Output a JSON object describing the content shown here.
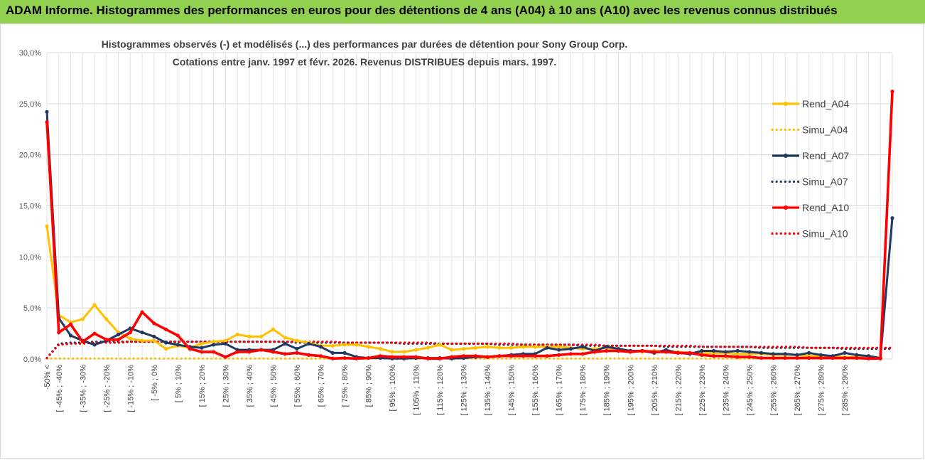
{
  "header": {
    "title": "ADAM Informe. Histogrammes des performances en euros pour des détentions de 4 ans (A04) à 10 ans (A10) avec les revenus connus distribués"
  },
  "colors": {
    "banner": "#92d050",
    "A04": "#ffc000",
    "A07": "#1f3864",
    "A10": "#ff0000",
    "grid": "#d9d9d9"
  },
  "chart_data": {
    "type": "line",
    "title": "Histogrammes observés (-) et modélisés (...) des performances par durées de détention pour Sony Group Corp.",
    "subtitle": "Cotations entre janv. 1997 et févr. 2026. Revenus DISTRIBUES depuis mars. 1997.",
    "y_ticks": [
      "0,0%",
      "5,0%",
      "10,0%",
      "15,0%",
      "20,0%",
      "25,0%",
      "30,0%"
    ],
    "ylim": [
      0,
      30
    ],
    "grid": true,
    "legend_position": "right",
    "x_labels": [
      "-50% <",
      "[ -45% ; -40%",
      "[ -35% ; -30%",
      "[ -25% ; -20%",
      "[ -15% ; -10%",
      "[ -5% ; 0%",
      "[ 5% ; 10%",
      "[ 15% ; 20%",
      "[ 25% ; 30%",
      "[ 35% ; 40%",
      "[ 45% ; 50%",
      "[ 55% ; 60%",
      "[ 65% ; 70%",
      "[ 75% ; 80%",
      "[ 85% ; 90%",
      "[ 95% ; 100%",
      "[ 105% ; 110%",
      "[ 115% ; 120%",
      "[ 125% ; 130%",
      "[ 135% ; 140%",
      "[ 145% ; 150%",
      "[ 155% ; 160%",
      "[ 165% ; 170%",
      "[ 175% ; 180%",
      "[ 185% ; 190%",
      "[ 195% ; 200%",
      "[ 205% ; 210%",
      "[ 215% ; 220%",
      "[ 225% ; 230%",
      "[ 235% ; 240%",
      "[ 245% ; 250%",
      "[ 255% ; 260%",
      "[ 265% ; 270%",
      "[ 275% ; 280%",
      "[ 285% ; 290%"
    ],
    "series": [
      {
        "name": "Rend_A04",
        "style": "solid",
        "color": "#ffc000",
        "values": [
          13.0,
          4.3,
          3.6,
          3.9,
          5.3,
          3.9,
          2.6,
          2.0,
          1.8,
          1.8,
          1.0,
          1.3,
          1.1,
          1.5,
          1.7,
          1.8,
          2.4,
          2.2,
          2.2,
          2.9,
          2.1,
          1.8,
          1.6,
          1.3,
          1.3,
          1.4,
          1.4,
          1.2,
          1.0,
          0.7,
          0.7,
          0.9,
          1.1,
          1.4,
          0.9,
          1.0,
          1.1,
          1.2,
          1.1,
          1.1,
          1.2,
          1.2,
          1.2,
          1.2,
          1.1,
          1.0,
          1.0,
          1.1,
          0.9,
          0.8,
          0.7,
          0.8,
          0.7,
          0.7,
          0.6,
          0.6,
          0.6,
          0.6,
          0.5,
          0.5,
          0.5,
          0.4,
          0.4,
          0.4,
          0.3,
          0.3,
          0.3,
          0.2,
          0.2,
          0.1
        ]
      },
      {
        "name": "Simu_A04",
        "style": "dotted",
        "color": "#ffc000",
        "values": [
          0.05,
          0.05,
          0.05,
          0.05,
          0.05,
          0.05,
          0.05,
          0.05,
          0.05,
          0.05,
          0.05,
          0.05,
          0.05,
          0.05,
          0.05,
          0.05,
          0.05,
          0.05,
          0.05,
          0.05,
          0.05,
          0.05,
          0.05,
          0.05,
          0.05,
          0.05,
          0.05,
          0.05,
          0.05,
          0.05,
          0.05,
          0.05,
          0.05,
          0.05,
          0.05,
          0.05,
          0.05,
          0.05,
          0.05,
          0.05,
          0.05,
          0.05,
          0.05,
          0.05,
          0.05,
          0.05,
          0.05,
          0.05,
          0.05,
          0.05,
          0.05,
          0.05,
          0.05,
          0.05,
          0.05,
          0.05,
          0.05,
          0.05,
          0.05,
          0.05,
          0.05,
          0.05,
          0.05,
          0.05,
          0.05,
          0.05,
          0.05,
          0.05,
          0.05,
          0.05
        ]
      },
      {
        "name": "Rend_A07",
        "style": "solid",
        "color": "#1f3864",
        "values": [
          24.2,
          4.0,
          2.3,
          1.8,
          1.4,
          1.8,
          2.4,
          3.0,
          2.6,
          2.2,
          1.6,
          1.4,
          1.2,
          1.1,
          1.4,
          1.5,
          0.9,
          0.9,
          0.9,
          0.9,
          1.5,
          1.0,
          1.5,
          1.2,
          0.6,
          0.6,
          0.2,
          0.1,
          0.1,
          0.05,
          0.05,
          0.1,
          0.1,
          0.1,
          0.05,
          0.1,
          0.2,
          0.2,
          0.3,
          0.4,
          0.5,
          0.5,
          1.1,
          0.9,
          1.0,
          1.2,
          0.8,
          1.2,
          1.0,
          0.8,
          0.8,
          0.6,
          0.9,
          0.6,
          0.5,
          0.8,
          0.8,
          0.7,
          0.8,
          0.7,
          0.6,
          0.5,
          0.5,
          0.4,
          0.6,
          0.4,
          0.3,
          0.6,
          0.4,
          0.3,
          0.1,
          13.8
        ]
      },
      {
        "name": "Simu_A07",
        "style": "dotted",
        "color": "#1f3864",
        "values": [
          0.1,
          1.5,
          1.6,
          1.6,
          1.7,
          1.7,
          1.7,
          1.7,
          1.7,
          1.7,
          1.7,
          1.7,
          1.7,
          1.7,
          1.7,
          1.7,
          1.7,
          1.7,
          1.7,
          1.7,
          1.7,
          1.6,
          1.6,
          1.6,
          1.6,
          1.6,
          1.6,
          1.6,
          1.6,
          1.6,
          1.5,
          1.5,
          1.5,
          1.5,
          1.5,
          1.5,
          1.5,
          1.5,
          1.4,
          1.4,
          1.4,
          1.4,
          1.4,
          1.4,
          1.4,
          1.3,
          1.3,
          1.3,
          1.3,
          1.3,
          1.3,
          1.3,
          1.2,
          1.2,
          1.2,
          1.2,
          1.2,
          1.2,
          1.2,
          1.2,
          1.1,
          1.1,
          1.1,
          1.1,
          1.1,
          1.1,
          1.1,
          1.0,
          1.0,
          1.0,
          1.0,
          1.0
        ]
      },
      {
        "name": "Rend_A10",
        "style": "solid",
        "color": "#ff0000",
        "values": [
          23.2,
          2.6,
          3.4,
          1.7,
          2.5,
          1.9,
          1.9,
          2.6,
          4.6,
          3.5,
          2.9,
          2.3,
          1.0,
          0.7,
          0.7,
          0.2,
          0.7,
          0.7,
          0.9,
          0.7,
          0.5,
          0.6,
          0.4,
          0.3,
          0.05,
          0.1,
          0.05,
          0.1,
          0.3,
          0.2,
          0.2,
          0.2,
          0.05,
          0.05,
          0.2,
          0.3,
          0.3,
          0.2,
          0.3,
          0.3,
          0.3,
          0.3,
          0.3,
          0.4,
          0.5,
          0.5,
          0.7,
          0.8,
          0.8,
          0.7,
          0.8,
          0.7,
          0.7,
          0.6,
          0.6,
          0.4,
          0.3,
          0.3,
          0.2,
          0.2,
          0.1,
          0.1,
          0.1,
          0.1,
          0.1,
          0.1,
          0.1,
          0.1,
          0.1,
          0.05,
          0.05,
          26.2
        ]
      },
      {
        "name": "Simu_A10",
        "style": "dotted",
        "color": "#ff0000",
        "values": [
          0.1,
          1.4,
          1.5,
          1.5,
          1.6,
          1.6,
          1.6,
          1.7,
          1.7,
          1.7,
          1.7,
          1.7,
          1.7,
          1.7,
          1.7,
          1.7,
          1.7,
          1.7,
          1.7,
          1.7,
          1.7,
          1.7,
          1.7,
          1.7,
          1.7,
          1.6,
          1.6,
          1.6,
          1.6,
          1.6,
          1.6,
          1.6,
          1.6,
          1.5,
          1.5,
          1.5,
          1.5,
          1.5,
          1.5,
          1.5,
          1.4,
          1.4,
          1.4,
          1.4,
          1.4,
          1.4,
          1.4,
          1.3,
          1.3,
          1.3,
          1.3,
          1.3,
          1.3,
          1.3,
          1.3,
          1.2,
          1.2,
          1.2,
          1.2,
          1.2,
          1.2,
          1.2,
          1.2,
          1.2,
          1.1,
          1.1,
          1.1,
          1.1,
          1.1,
          1.1,
          1.1,
          1.1
        ]
      }
    ]
  }
}
